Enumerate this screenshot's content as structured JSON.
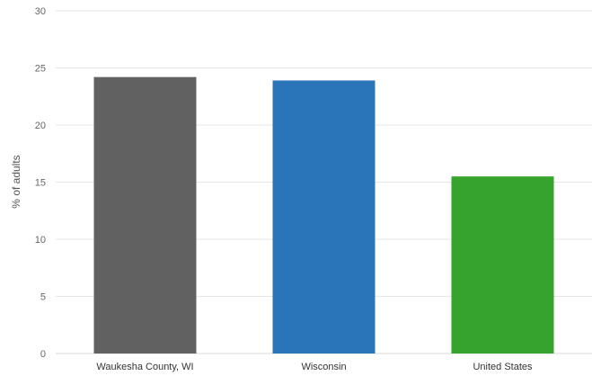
{
  "chart_data": {
    "type": "bar",
    "title": "",
    "xlabel": "",
    "ylabel": "% of adults",
    "ylim": [
      0,
      30
    ],
    "yticks": [
      0,
      5,
      10,
      15,
      20,
      25,
      30
    ],
    "grid": true,
    "legend": "none",
    "categories": [
      "Waukesha County, WI",
      "Wisconsin",
      "United States"
    ],
    "values": [
      24.2,
      23.9,
      15.5
    ],
    "colors": [
      "#616161",
      "#2a74b9",
      "#36a32c"
    ]
  },
  "colors": {
    "gridline": "#e6e6e6",
    "baseline": "#d9d9d9"
  }
}
